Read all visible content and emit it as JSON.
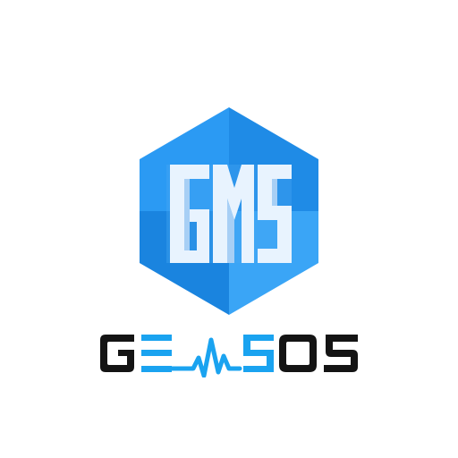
{
  "logo": {
    "monogram": "GMS",
    "wordmark": "GEMSOS",
    "colors": {
      "hex_top_left": "#2b9af3",
      "hex_top_right": "#1f8be6",
      "hex_bottom_left": "#1a84df",
      "hex_bottom_right": "#3aa5f6",
      "monogram_face": "#e8f3fe",
      "monogram_shadow": "#a7cff5",
      "wordmark_text": "#141414",
      "wordmark_accent": "#1aa3f0"
    }
  }
}
